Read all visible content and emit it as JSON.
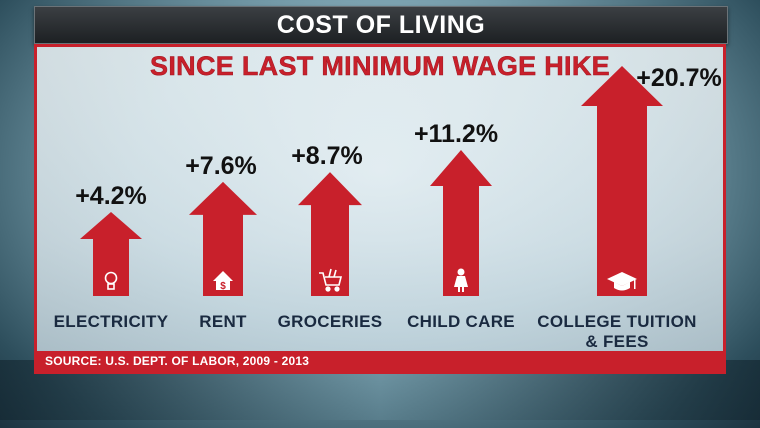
{
  "header": {
    "title": "COST OF LIVING"
  },
  "subtitle": "SINCE LAST MINIMUM WAGE HIKE",
  "source": "SOURCE: U.S. DEPT. OF LABOR, 2009 - 2013",
  "colors": {
    "arrow": "#c8202b",
    "frame": "#c8202b",
    "label": "#111111",
    "category": "#1a2a40"
  },
  "chart_data": {
    "type": "bar",
    "categories": [
      "ELECTRICITY",
      "RENT",
      "GROCERIES",
      "CHILD CARE",
      "COLLEGE TUITION & FEES"
    ],
    "category_lines": [
      [
        "ELECTRICITY"
      ],
      [
        "RENT"
      ],
      [
        "GROCERIES"
      ],
      [
        "CHILD CARE"
      ],
      [
        "COLLEGE TUITION",
        "& FEES"
      ]
    ],
    "values": [
      4.2,
      7.6,
      8.7,
      11.2,
      20.7
    ],
    "value_labels": [
      "+4.2%",
      "+7.6%",
      "+8.7%",
      "+11.2%",
      "+20.7%"
    ],
    "icons": [
      "lightbulb-icon",
      "house-dollar-icon",
      "grocery-cart-icon",
      "child-icon",
      "graduation-cap-icon"
    ],
    "unit": "%",
    "title": "COST OF LIVING",
    "subtitle": "SINCE LAST MINIMUM WAGE HIKE"
  }
}
